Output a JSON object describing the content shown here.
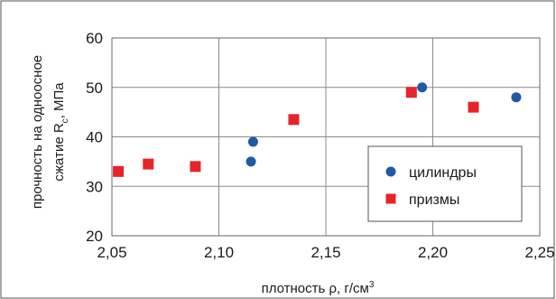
{
  "chart_data": {
    "type": "scatter",
    "xlabel": "плотность  ρ, г/см",
    "xlabel_sup": "3",
    "ylabel_line1": "прочность на одноосное",
    "ylabel_line2_pre": "сжатие R",
    "ylabel_line2_sub": "c",
    "ylabel_line2_post": ", МПа",
    "xlim": [
      2.05,
      2.25
    ],
    "ylim": [
      20,
      60
    ],
    "x_ticks": [
      2.05,
      2.1,
      2.15,
      2.2,
      2.25
    ],
    "x_tick_labels": [
      "2,05",
      "2,10",
      "2,15",
      "2,20",
      "2,25"
    ],
    "y_ticks": [
      20,
      30,
      40,
      50,
      60
    ],
    "y_tick_labels": [
      "20",
      "30",
      "40",
      "50",
      "60"
    ],
    "grid": true,
    "legend_position": "bottom-right",
    "series": [
      {
        "name": "цилиндры",
        "marker": "circle",
        "color": "#1f5aa6",
        "points": [
          {
            "x": 2.115,
            "y": 35.0
          },
          {
            "x": 2.116,
            "y": 39.0
          },
          {
            "x": 2.195,
            "y": 50.0
          },
          {
            "x": 2.239,
            "y": 48.0
          }
        ]
      },
      {
        "name": "призмы",
        "marker": "square",
        "color": "#e8232a",
        "points": [
          {
            "x": 2.053,
            "y": 33.0
          },
          {
            "x": 2.067,
            "y": 34.5
          },
          {
            "x": 2.089,
            "y": 34.0
          },
          {
            "x": 2.135,
            "y": 43.5
          },
          {
            "x": 2.19,
            "y": 49.0
          },
          {
            "x": 2.219,
            "y": 46.0
          }
        ]
      }
    ]
  }
}
